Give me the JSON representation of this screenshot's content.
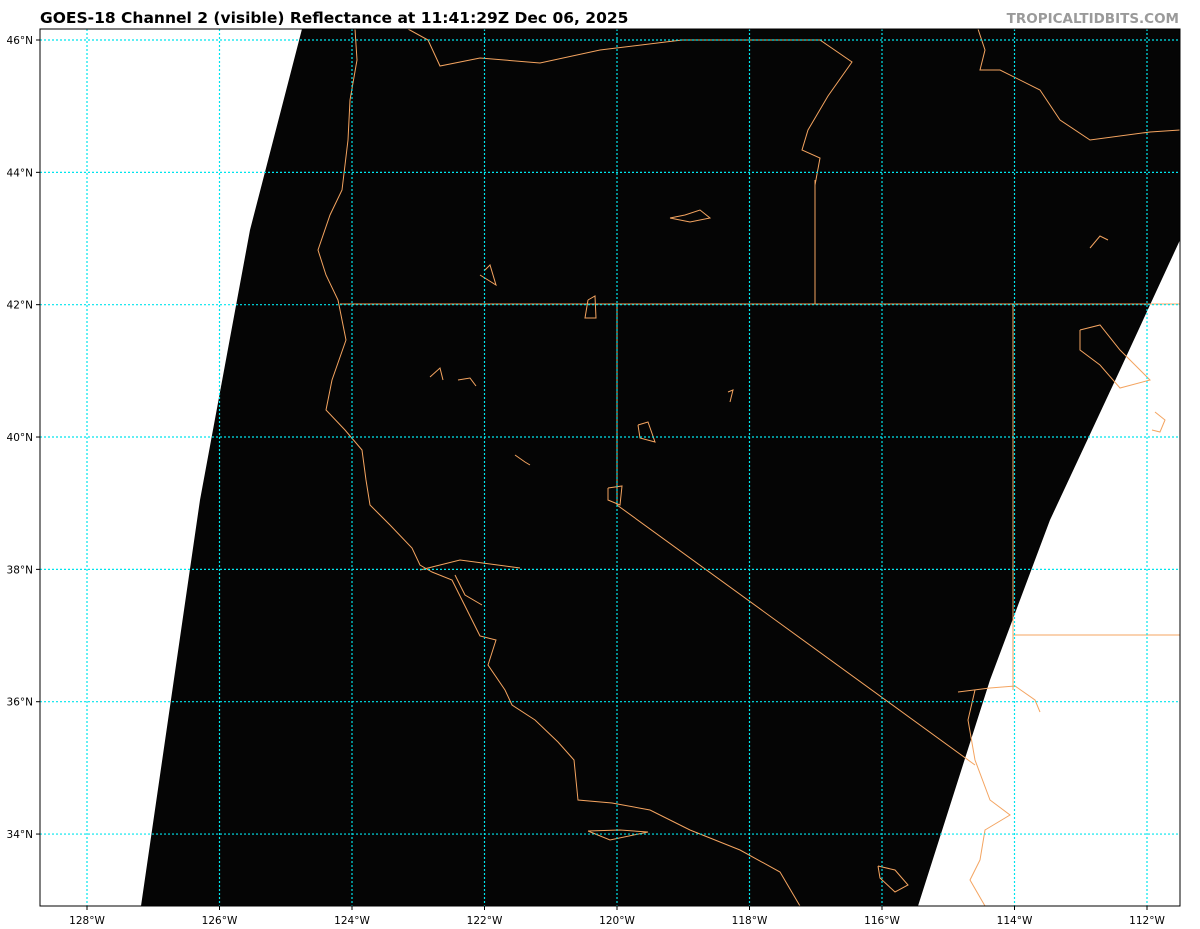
{
  "header": {
    "title": "GOES-18 Channel 2 (visible) Reflectance at 11:41:29Z Dec 06, 2025",
    "credit": "TROPICALTIDBITS.COM"
  },
  "map": {
    "projection": "plate carree",
    "lon_range": [
      -128.7,
      -111.5
    ],
    "lat_range": [
      32.9,
      46.15
    ],
    "lon_ticks": [
      {
        "value": -128,
        "label": "128°W"
      },
      {
        "value": -126,
        "label": "126°W"
      },
      {
        "value": -124,
        "label": "124°W"
      },
      {
        "value": -122,
        "label": "122°W"
      },
      {
        "value": -120,
        "label": "120°W"
      },
      {
        "value": -118,
        "label": "118°W"
      },
      {
        "value": -116,
        "label": "116°W"
      },
      {
        "value": -114,
        "label": "114°W"
      },
      {
        "value": -112,
        "label": "112°W"
      }
    ],
    "lat_ticks": [
      {
        "value": 46,
        "label": "46°N"
      },
      {
        "value": 44,
        "label": "44°N"
      },
      {
        "value": 42,
        "label": "42°N"
      },
      {
        "value": 40,
        "label": "40°N"
      },
      {
        "value": 38,
        "label": "38°N"
      },
      {
        "value": 36,
        "label": "36°N"
      },
      {
        "value": 34,
        "label": "34°N"
      }
    ],
    "colors": {
      "imagery": "#050505",
      "no_data": "#ffffff",
      "gridlines": "#00e5ee",
      "coastlines": "#f4a460"
    }
  }
}
